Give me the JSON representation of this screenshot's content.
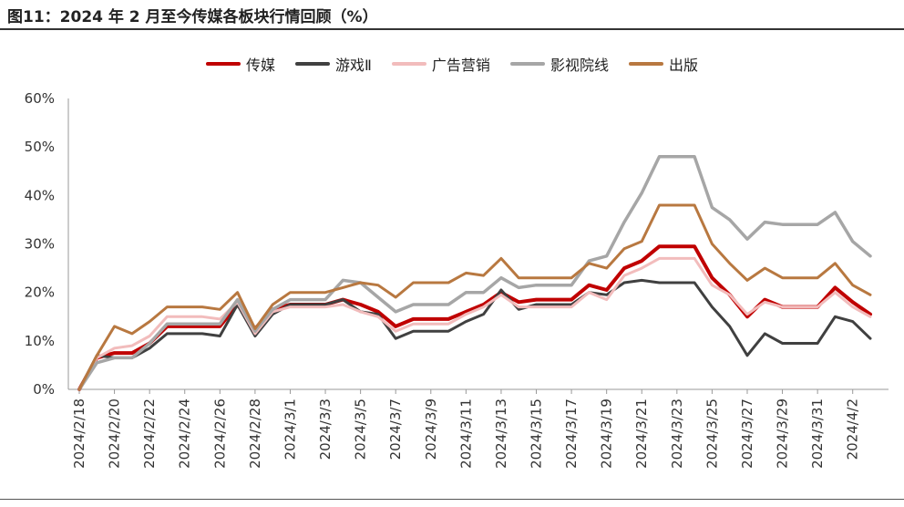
{
  "header": {
    "title": "图11：2024 年 2 月至今传媒各板块行情回顾（%）"
  },
  "chart_data": {
    "type": "line",
    "title": "",
    "xlabel": "",
    "ylabel": "",
    "ylim": [
      0,
      60
    ],
    "yticks": [
      "0%",
      "10%",
      "20%",
      "30%",
      "40%",
      "50%",
      "60%"
    ],
    "ytick_values": [
      0,
      10,
      20,
      30,
      40,
      50,
      60
    ],
    "grid": false,
    "legend_position": "top-center",
    "x": [
      "2024/2/18",
      "2024/2/19",
      "2024/2/20",
      "2024/2/21",
      "2024/2/22",
      "2024/2/23",
      "2024/2/24",
      "2024/2/25",
      "2024/2/26",
      "2024/2/27",
      "2024/2/28",
      "2024/2/29",
      "2024/3/1",
      "2024/3/2",
      "2024/3/3",
      "2024/3/4",
      "2024/3/5",
      "2024/3/6",
      "2024/3/7",
      "2024/3/8",
      "2024/3/9",
      "2024/3/10",
      "2024/3/11",
      "2024/3/12",
      "2024/3/13",
      "2024/3/14",
      "2024/3/15",
      "2024/3/16",
      "2024/3/17",
      "2024/3/18",
      "2024/3/19",
      "2024/3/20",
      "2024/3/21",
      "2024/3/22",
      "2024/3/23",
      "2024/3/24",
      "2024/3/25",
      "2024/3/26",
      "2024/3/27",
      "2024/3/28",
      "2024/3/29",
      "2024/3/30",
      "2024/3/31",
      "2024/4/1",
      "2024/4/2",
      "2024/4/3"
    ],
    "x_tick_labels": [
      "2024/2/18",
      "2024/2/20",
      "2024/2/22",
      "2024/2/24",
      "2024/2/26",
      "2024/2/28",
      "2024/3/1",
      "2024/3/3",
      "2024/3/5",
      "2024/3/7",
      "2024/3/9",
      "2024/3/11",
      "2024/3/13",
      "2024/3/15",
      "2024/3/17",
      "2024/3/19",
      "2024/3/21",
      "2024/3/23",
      "2024/3/25",
      "2024/3/27",
      "2024/3/29",
      "2024/3/31",
      "2024/4/2"
    ],
    "series": [
      {
        "name": "传媒",
        "color": "#c00000",
        "width": 4,
        "values": [
          0,
          6.5,
          7.5,
          7.5,
          9.5,
          13,
          13,
          13,
          13,
          17.5,
          12.5,
          16.5,
          17.5,
          17.5,
          17.5,
          18.5,
          17.5,
          16,
          13,
          14.5,
          14.5,
          14.5,
          16,
          17.5,
          20,
          18,
          18.5,
          18.5,
          18.5,
          21.5,
          20.5,
          25,
          26.5,
          29.5,
          29.5,
          29.5,
          23,
          19.5,
          15,
          18.5,
          17,
          17,
          17,
          21,
          18,
          15.5
        ]
      },
      {
        "name": "游戏Ⅱ",
        "color": "#404040",
        "width": 3,
        "values": [
          0,
          7,
          6.5,
          6.5,
          8.5,
          11.5,
          11.5,
          11.5,
          11,
          17.5,
          11,
          15.5,
          17.5,
          17.5,
          17.5,
          18.5,
          16,
          15.5,
          10.5,
          12,
          12,
          12,
          14,
          15.5,
          20.5,
          16.5,
          17.5,
          17.5,
          17.5,
          20,
          19.5,
          22,
          22.5,
          22,
          22,
          22,
          17,
          13,
          7,
          11.5,
          9.5,
          9.5,
          9.5,
          15,
          14,
          10.5
        ]
      },
      {
        "name": "广告营销",
        "color": "#f2bcbc",
        "width": 3,
        "values": [
          0,
          6.5,
          8.5,
          9,
          11,
          15,
          15,
          15,
          14.5,
          18,
          11.5,
          16,
          17,
          17,
          17,
          17.5,
          16,
          15,
          12,
          13.5,
          13.5,
          13.5,
          15.5,
          17,
          19.5,
          17,
          17,
          17,
          17,
          20,
          18.5,
          23.5,
          25,
          27,
          27,
          27,
          21.5,
          19.5,
          15.5,
          18,
          17,
          17,
          17,
          20,
          17,
          15
        ]
      },
      {
        "name": "影视院线",
        "color": "#a6a6a6",
        "width": 3.5,
        "values": [
          0,
          5.5,
          6.5,
          6.5,
          9.5,
          13.5,
          13.5,
          13.5,
          13.5,
          18.5,
          12,
          16.5,
          18.5,
          18.5,
          18.5,
          22.5,
          22,
          19,
          16,
          17.5,
          17.5,
          17.5,
          20,
          20,
          23,
          21,
          21.5,
          21.5,
          21.5,
          26.5,
          27.5,
          34.5,
          40.5,
          48,
          48,
          48,
          37.5,
          35,
          31,
          34.5,
          34,
          34,
          34,
          36.5,
          30.5,
          27.5
        ]
      },
      {
        "name": "出版",
        "color": "#b87840",
        "width": 3,
        "values": [
          0,
          7,
          13,
          11.5,
          14,
          17,
          17,
          17,
          16.5,
          20,
          12.5,
          17.5,
          20,
          20,
          20,
          21,
          22,
          21.5,
          19,
          22,
          22,
          22,
          24,
          23.5,
          27,
          23,
          23,
          23,
          23,
          26,
          25,
          29,
          30.5,
          38,
          38,
          38,
          30,
          26,
          22.5,
          25,
          23,
          23,
          23,
          26,
          21.5,
          19.5
        ]
      }
    ]
  }
}
